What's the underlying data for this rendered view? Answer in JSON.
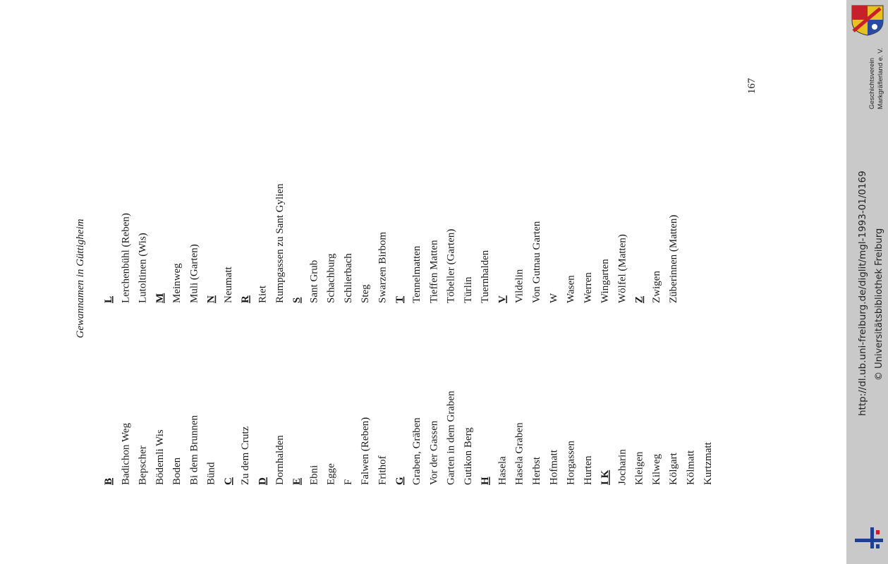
{
  "document": {
    "title": "Gewannamen in Güttigheim",
    "page_number": "167",
    "columns": [
      {
        "groups": [
          {
            "letter": "B",
            "names": [
              "Badichon Weg",
              "Bepscher",
              "Bödemli Wis",
              "Boden",
              "Bi dem Brunnen",
              "Bünd"
            ]
          },
          {
            "letter": "C",
            "names": [
              "Zu dem Crutz"
            ]
          },
          {
            "letter": "D",
            "names": [
              "Dornhalden"
            ]
          },
          {
            "letter": "E",
            "names": [
              "Ebni",
              "Egge",
              "F",
              "Falwen (Reben)",
              "Frithof"
            ]
          },
          {
            "letter": "G",
            "names": [
              "Graben, Gräben",
              "Vor der Gassen",
              "Garten in dem Graben",
              "Gutikon Berg"
            ]
          },
          {
            "letter": "H",
            "names": [
              "Hasela",
              "Hasela Graben",
              "Herbst",
              "Hofmatt",
              "Horgassen",
              "Hurten"
            ]
          },
          {
            "letter": "I K",
            "names": [
              "Jocharin",
              "Kleigen",
              "Kilweg",
              "Kölgart",
              "Kölmatt",
              "Kurtzmatt"
            ]
          }
        ]
      },
      {
        "groups": [
          {
            "letter": "L",
            "names": [
              "Lerchenbühl (Reben)",
              "Lutoltinen (Wis)"
            ]
          },
          {
            "letter": "M",
            "names": [
              "Meinweg",
              "Muli (Garten)"
            ]
          },
          {
            "letter": "N",
            "names": [
              "Neumatt"
            ]
          },
          {
            "letter": "R",
            "names": [
              "Riet",
              "Rumpgassen zu Sant Gylien"
            ]
          },
          {
            "letter": "S",
            "names": [
              "Sant Grub",
              "Schachburg",
              "Schlierbach",
              "Steg",
              "Swarzen Birbom"
            ]
          },
          {
            "letter": "T",
            "names": [
              "Tennelmatten",
              "Tieffen Matten",
              "Töbeller (Garten)",
              "Türlin",
              "Tuernhalden"
            ]
          },
          {
            "letter": "V",
            "names": [
              "Vildelin",
              "Von Gutnau Garten",
              "W",
              "Wasen",
              "Werren",
              "Wingarten",
              "Wölfel (Matten)"
            ]
          },
          {
            "letter": "Z",
            "names": [
              "Zwigen",
              "Züberinnen (Matten)"
            ]
          }
        ]
      }
    ]
  },
  "sidebar": {
    "url": "http://dl.ub.uni-freiburg.de/diglit/mgl-1993-01/0169",
    "copyright": "© Universitätsbibliothek Freiburg",
    "association_line1": "Geschichtsverein",
    "association_line2": "Markgräflerland e. V."
  }
}
